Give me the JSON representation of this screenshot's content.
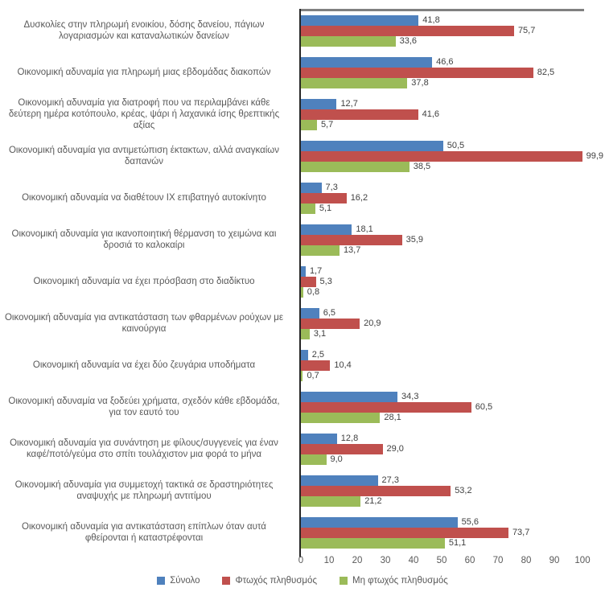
{
  "chart_data": {
    "type": "bar",
    "orientation": "horizontal",
    "title": "",
    "xlabel": "",
    "ylabel": "",
    "xlim": [
      0,
      100
    ],
    "grid": false,
    "legend_position": "bottom",
    "decimal_separator": ",",
    "x_tick_labels": [
      "0",
      "10",
      "20",
      "30",
      "40",
      "50",
      "60",
      "70",
      "80",
      "90",
      "100"
    ],
    "categories": [
      "Δυσκολίες στην πληρωμή ενοικίου, δόσης δανείου, πάγιων λογαριασμών και καταναλωτικών δανείων",
      "Οικονομική αδυναμία για πληρωμή  μιας εβδομάδας διακοπών",
      "Οικονομική αδυναμία για διατροφή που να περιλαμβάνει κάθε δεύτερη ημέρα κοτόπουλο, κρέας, ψάρι ή λαχανικά ίσης θρεπτικής αξίας",
      "Οικονομική αδυναμία για αντιμετώπιση έκτακτων, αλλά αναγκαίων δαπανών",
      "Οικονομική αδυναμία να διαθέτουν ΙΧ επιβατηγό αυτοκίνητο",
      "Οικονομική αδυναμία για ικανοποιητική θέρμανση το χειμώνα και δροσιά το καλοκαίρι",
      "Οικονομική αδυναμία να έχει πρόσβαση στο διαδίκτυο",
      "Οικονομική αδυναμία για αντικατάσταση των φθαρμένων ρούχων με καινούργια",
      "Οικονομική αδυναμία να έχει δύο ζευγάρια υποδήματα",
      "Οικονομική αδυναμία να ξοδεύει χρήματα, σχεδόν κάθε εβδομάδα, για τον εαυτό του",
      "Οικονομική αδυναμία για συνάντηση με φίλους/συγγενείς για έναν καφέ/ποτό/γεύμα στο σπίτι τουλάχιστον μια φορά το μήνα",
      "Οικονομική αδυναμία για συμμετοχή τακτικά σε δραστηριότητες αναψυχής με πληρωμή αντιτίμου",
      "Οικονομική αδυναμία για αντικατάσταση επίπλων όταν αυτά φθείρονται ή καταστρέφονται"
    ],
    "series": [
      {
        "name": "Σύνολο",
        "color": "#4F81BD",
        "values": [
          41.8,
          46.6,
          12.7,
          50.5,
          7.3,
          18.1,
          1.7,
          6.5,
          2.5,
          34.3,
          12.8,
          27.3,
          55.6
        ],
        "labels": [
          "41,8",
          "46,6",
          "12,7",
          "50,5",
          "7,3",
          "18,1",
          "1,7",
          "6,5",
          "2,5",
          "34,3",
          "12,8",
          "27,3",
          "55,6"
        ]
      },
      {
        "name": "Φτωχός πληθυσμός",
        "color": "#C0504D",
        "values": [
          75.7,
          82.5,
          41.6,
          99.9,
          16.2,
          35.9,
          5.3,
          20.9,
          10.4,
          60.5,
          29.0,
          53.2,
          73.7
        ],
        "labels": [
          "75,7",
          "82,5",
          "41,6",
          "99,9",
          "16,2",
          "35,9",
          "5,3",
          "20,9",
          "10,4",
          "60,5",
          "29,0",
          "53,2",
          "73,7"
        ]
      },
      {
        "name": "Μη φτωχός πληθυσμός",
        "color": "#9BBB59",
        "values": [
          33.6,
          37.8,
          5.7,
          38.5,
          5.1,
          13.7,
          0.8,
          3.1,
          0.7,
          28.1,
          9.0,
          21.2,
          51.1
        ],
        "labels": [
          "33,6",
          "37,8",
          "5,7",
          "38,5",
          "5,1",
          "13,7",
          "0,8",
          "3,1",
          "0,7",
          "28,1",
          "9,0",
          "21,2",
          "51,1"
        ]
      }
    ],
    "colors": {
      "axis_line": "#262626",
      "plot_top_border": "#808080",
      "category_text": "#595959",
      "value_text": "#404040",
      "tick_text": "#595959"
    }
  }
}
